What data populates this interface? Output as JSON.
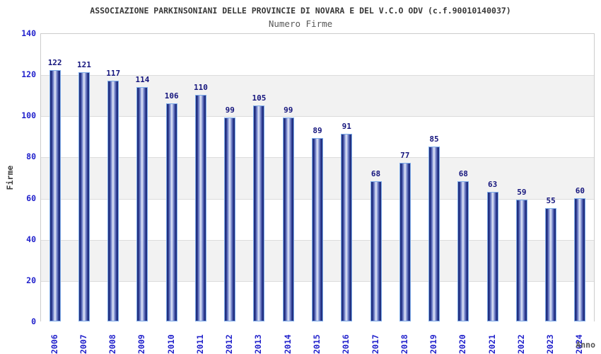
{
  "header": {
    "title": "ASSOCIAZIONE PARKINSONIANI DELLE PROVINCIE DI NOVARA E DEL V.C.O ODV (c.f.90010140037)",
    "subtitle": "Numero Firme"
  },
  "chart_data": {
    "type": "bar",
    "title": "ASSOCIAZIONE PARKINSONIANI DELLE PROVINCIE DI NOVARA E DEL V.C.O ODV (c.f.90010140037)",
    "subtitle": "Numero Firme",
    "xlabel": "Anno",
    "ylabel": "Firme",
    "categories": [
      "2006",
      "2007",
      "2008",
      "2009",
      "2010",
      "2011",
      "2012",
      "2013",
      "2014",
      "2015",
      "2016",
      "2017",
      "2018",
      "2019",
      "2020",
      "2021",
      "2022",
      "2023",
      "2024"
    ],
    "values": [
      122,
      121,
      117,
      114,
      106,
      110,
      99,
      105,
      99,
      89,
      91,
      68,
      77,
      85,
      68,
      63,
      59,
      55,
      60
    ],
    "ylim": [
      0,
      140
    ],
    "ytick_step": 20,
    "grid": "horizontal gridlines with alternating shaded bands",
    "legend": "none",
    "bar_labels_shown": true
  },
  "colors": {
    "axis_tick_text": "#2222cc",
    "bar_value_text": "#15157d",
    "band_shaded": "#f2f2f2",
    "band_plain": "#ffffff",
    "gridline": "#dcdcdc",
    "plot_border": "#cccccc",
    "bar_border": "#7dabe9",
    "bar_dark": "#1a276f",
    "bar_mid": "#2e3d96",
    "bar_light": "#95a4dc",
    "bar_highlight": "#e6eaf8",
    "title_text": "#383838",
    "subtitle_text": "#585858",
    "ylabel_text": "#3d3d3d",
    "xlabel_text": "#555555"
  }
}
